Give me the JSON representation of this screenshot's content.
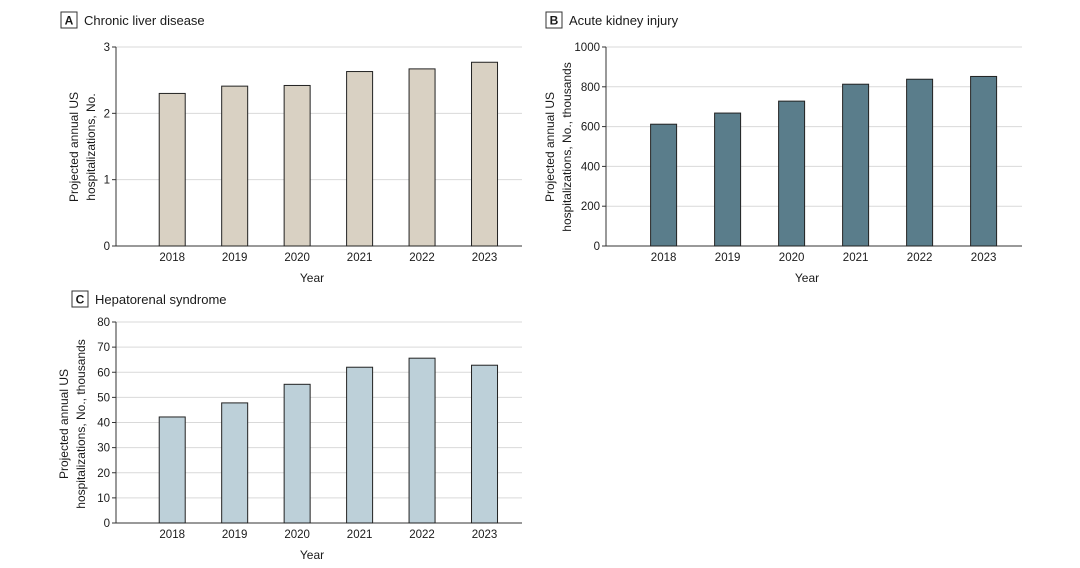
{
  "chart_data": [
    {
      "id": "A",
      "type": "bar",
      "letter": "A",
      "title": "Chronic liver disease",
      "xlabel": "Year",
      "ylabel": [
        "Projected annual US",
        "hospitalizations, No."
      ],
      "categories": [
        "2018",
        "2019",
        "2020",
        "2021",
        "2022",
        "2023"
      ],
      "values": [
        2.3,
        2.41,
        2.42,
        2.63,
        2.67,
        2.77
      ],
      "ylim": [
        0,
        3
      ],
      "yticks": [
        0,
        1,
        2,
        3
      ],
      "grid": true,
      "bar_color": "#d9d1c3"
    },
    {
      "id": "B",
      "type": "bar",
      "letter": "B",
      "title": "Acute kidney injury",
      "xlabel": "Year",
      "ylabel": [
        "Projected annual US",
        "hospitalizations, No., thousands"
      ],
      "categories": [
        "2018",
        "2019",
        "2020",
        "2021",
        "2022",
        "2023"
      ],
      "values": [
        612,
        668,
        728,
        813,
        838,
        852
      ],
      "ylim": [
        0,
        1000
      ],
      "yticks": [
        0,
        200,
        400,
        600,
        800,
        1000
      ],
      "grid": true,
      "bar_color": "#5a7d8b"
    },
    {
      "id": "C",
      "type": "bar",
      "letter": "C",
      "title": "Hepatorenal syndrome",
      "xlabel": "Year",
      "ylabel": [
        "Projected annual US",
        "hospitalizations, No., thousands"
      ],
      "categories": [
        "2018",
        "2019",
        "2020",
        "2021",
        "2022",
        "2023"
      ],
      "values": [
        42.2,
        47.8,
        55.2,
        62.0,
        65.6,
        62.8
      ],
      "ylim": [
        0,
        80
      ],
      "yticks": [
        0,
        10,
        20,
        30,
        40,
        50,
        60,
        70,
        80
      ],
      "grid": true,
      "bar_color": "#bdd0d9"
    }
  ]
}
